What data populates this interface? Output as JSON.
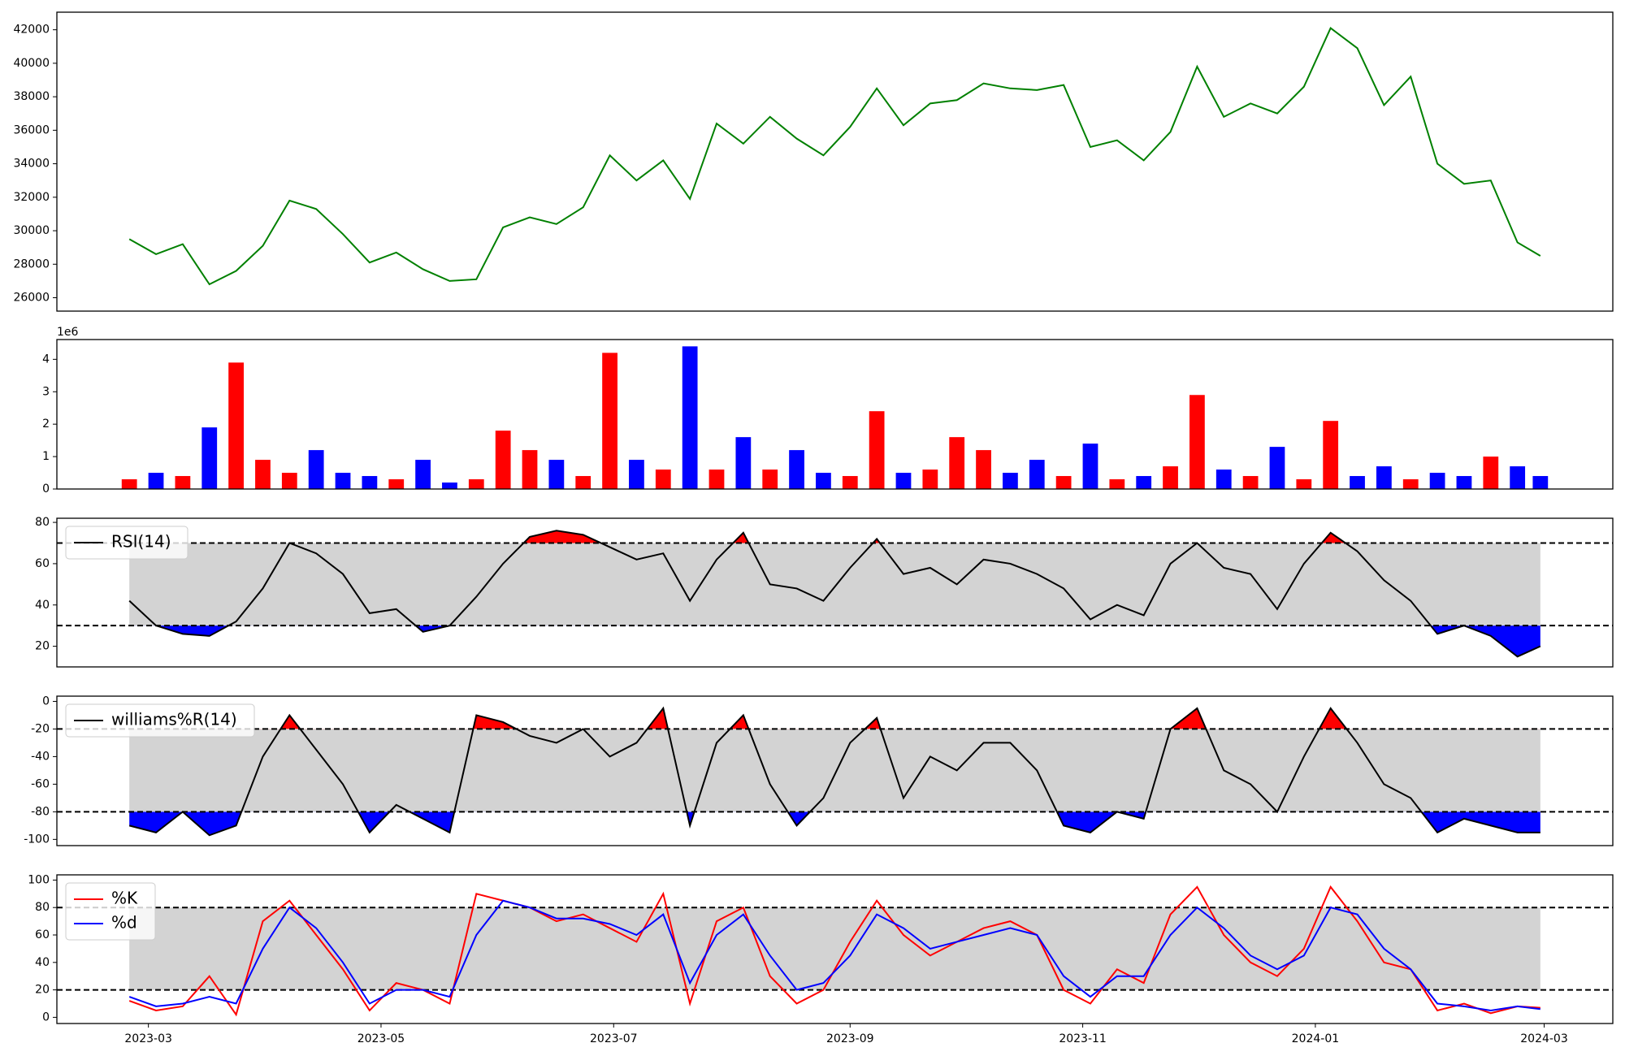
{
  "chart_data": [
    {
      "type": "line",
      "ylim": [
        25200,
        43050
      ],
      "yticks": [
        26000,
        28000,
        30000,
        32000,
        34000,
        36000,
        38000,
        40000,
        42000
      ],
      "series": [
        {
          "color": "green",
          "values": [
            29500,
            28600,
            29200,
            26800,
            27600,
            29100,
            31800,
            31300,
            29800,
            28100,
            28700,
            27700,
            27000,
            27100,
            30200,
            30800,
            30400,
            31400,
            34500,
            33000,
            34200,
            31900,
            36400,
            35200,
            36800,
            35500,
            34500,
            36200,
            38500,
            36300,
            37600,
            37800,
            38800,
            38500,
            38400,
            38700,
            35000,
            35400,
            34200,
            35900,
            39800,
            36800,
            37600,
            37000,
            38600,
            42100,
            40900,
            37500,
            39200,
            34000,
            32800,
            33000,
            29300,
            28500
          ]
        }
      ]
    },
    {
      "type": "bar",
      "offset_label": "1e6",
      "ylim": [
        0,
        4.61
      ],
      "yticks": [
        0,
        1,
        2,
        3,
        4
      ],
      "values": [
        0.3,
        0.5,
        0.4,
        1.9,
        3.9,
        0.9,
        0.5,
        1.2,
        0.5,
        0.4,
        0.3,
        0.9,
        0.2,
        0.3,
        1.8,
        1.2,
        0.9,
        0.4,
        4.2,
        0.9,
        0.6,
        4.4,
        0.6,
        1.6,
        0.6,
        1.2,
        0.5,
        0.4,
        2.4,
        0.5,
        0.6,
        1.6,
        1.2,
        0.5,
        0.9,
        0.4,
        1.4,
        0.3,
        0.4,
        0.7,
        2.9,
        0.6,
        0.4,
        1.3,
        0.3,
        2.1,
        0.4,
        0.7,
        0.3,
        0.5,
        0.4,
        1.0,
        0.7,
        0.4
      ],
      "colors": [
        "red",
        "blue",
        "red",
        "blue",
        "red",
        "red",
        "red",
        "blue",
        "blue",
        "blue",
        "red",
        "blue",
        "blue",
        "red",
        "red",
        "red",
        "blue",
        "red",
        "red",
        "blue",
        "red",
        "blue",
        "red",
        "blue",
        "red",
        "blue",
        "blue",
        "red",
        "red",
        "blue",
        "red",
        "red",
        "red",
        "blue",
        "blue",
        "red",
        "blue",
        "red",
        "blue",
        "red",
        "red",
        "blue",
        "red",
        "blue",
        "red",
        "red",
        "blue",
        "blue",
        "red",
        "blue",
        "blue",
        "red",
        "blue",
        "blue"
      ]
    },
    {
      "type": "line",
      "ylim": [
        10,
        82
      ],
      "yticks": [
        20,
        40,
        60,
        80
      ],
      "levels": [
        30,
        70
      ],
      "legend": "upper left",
      "band_color": "#d3d3d3",
      "above_color": "red",
      "below_color": "blue",
      "series": [
        {
          "name": "RSI(14)",
          "color": "black",
          "values": [
            42,
            30,
            26,
            25,
            32,
            48,
            70,
            65,
            55,
            36,
            38,
            27,
            30,
            44,
            60,
            73,
            76,
            74,
            68,
            62,
            65,
            42,
            62,
            75,
            50,
            48,
            42,
            58,
            72,
            55,
            58,
            50,
            62,
            60,
            55,
            48,
            33,
            40,
            35,
            60,
            70,
            58,
            55,
            38,
            60,
            75,
            66,
            52,
            42,
            26,
            30,
            25,
            15,
            20
          ]
        }
      ]
    },
    {
      "type": "line",
      "ylim": [
        -104.5,
        3.8
      ],
      "yticks": [
        -100,
        -80,
        -60,
        -40,
        -20,
        0
      ],
      "levels": [
        -80,
        -20
      ],
      "legend": "upper left",
      "band_color": "#d3d3d3",
      "above_color": "red",
      "below_color": "blue",
      "series": [
        {
          "name": "williams%R(14)",
          "color": "black",
          "values": [
            -90,
            -95,
            -80,
            -97,
            -90,
            -40,
            -10,
            -35,
            -60,
            -95,
            -75,
            -85,
            -95,
            -10,
            -15,
            -25,
            -30,
            -20,
            -40,
            -30,
            -5,
            -90,
            -30,
            -10,
            -60,
            -90,
            -70,
            -30,
            -12,
            -70,
            -40,
            -50,
            -30,
            -30,
            -50,
            -90,
            -95,
            -80,
            -85,
            -20,
            -5,
            -50,
            -60,
            -80,
            -40,
            -5,
            -30,
            -60,
            -70,
            -95,
            -85,
            -90,
            -95,
            -95
          ]
        }
      ]
    },
    {
      "type": "line",
      "ylim": [
        -4.5,
        103.8
      ],
      "yticks": [
        0,
        20,
        40,
        60,
        80,
        100
      ],
      "levels": [
        20,
        80
      ],
      "legend": "upper left",
      "band_color": "#d3d3d3",
      "xlim": [
        "2023-02-05",
        "2024-03-19"
      ],
      "xticks": [
        "2023-03",
        "2023-05",
        "2023-07",
        "2023-09",
        "2023-11",
        "2024-01",
        "2024-03"
      ],
      "x": [
        "2023-02-24",
        "2023-03-03",
        "2023-03-10",
        "2023-03-17",
        "2023-03-24",
        "2023-03-31",
        "2023-04-07",
        "2023-04-14",
        "2023-04-21",
        "2023-04-28",
        "2023-05-05",
        "2023-05-12",
        "2023-05-19",
        "2023-05-26",
        "2023-06-02",
        "2023-06-09",
        "2023-06-16",
        "2023-06-23",
        "2023-06-30",
        "2023-07-07",
        "2023-07-14",
        "2023-07-21",
        "2023-07-28",
        "2023-08-04",
        "2023-08-11",
        "2023-08-18",
        "2023-08-25",
        "2023-09-01",
        "2023-09-08",
        "2023-09-15",
        "2023-09-22",
        "2023-09-29",
        "2023-10-06",
        "2023-10-13",
        "2023-10-20",
        "2023-10-27",
        "2023-11-03",
        "2023-11-10",
        "2023-11-17",
        "2023-11-24",
        "2023-12-01",
        "2023-12-08",
        "2023-12-15",
        "2023-12-22",
        "2023-12-29",
        "2024-01-05",
        "2024-01-12",
        "2024-01-19",
        "2024-01-26",
        "2024-02-02",
        "2024-02-09",
        "2024-02-16",
        "2024-02-23",
        "2024-02-29"
      ],
      "series": [
        {
          "name": "%K",
          "color": "red",
          "values": [
            12,
            5,
            8,
            30,
            2,
            70,
            85,
            60,
            35,
            5,
            25,
            20,
            10,
            90,
            85,
            80,
            70,
            75,
            65,
            55,
            90,
            10,
            70,
            80,
            30,
            10,
            20,
            55,
            85,
            60,
            45,
            55,
            65,
            70,
            60,
            20,
            10,
            35,
            25,
            75,
            95,
            60,
            40,
            30,
            50,
            95,
            70,
            40,
            35,
            5,
            10,
            3,
            8,
            7
          ]
        },
        {
          "name": "%d",
          "color": "blue",
          "values": [
            15,
            8,
            10,
            15,
            10,
            50,
            80,
            65,
            40,
            10,
            20,
            20,
            15,
            60,
            85,
            80,
            72,
            72,
            68,
            60,
            75,
            25,
            60,
            75,
            45,
            20,
            25,
            45,
            75,
            65,
            50,
            55,
            60,
            65,
            60,
            30,
            15,
            30,
            30,
            60,
            80,
            65,
            45,
            35,
            45,
            80,
            75,
            50,
            35,
            10,
            8,
            5,
            8,
            6
          ]
        }
      ]
    }
  ]
}
